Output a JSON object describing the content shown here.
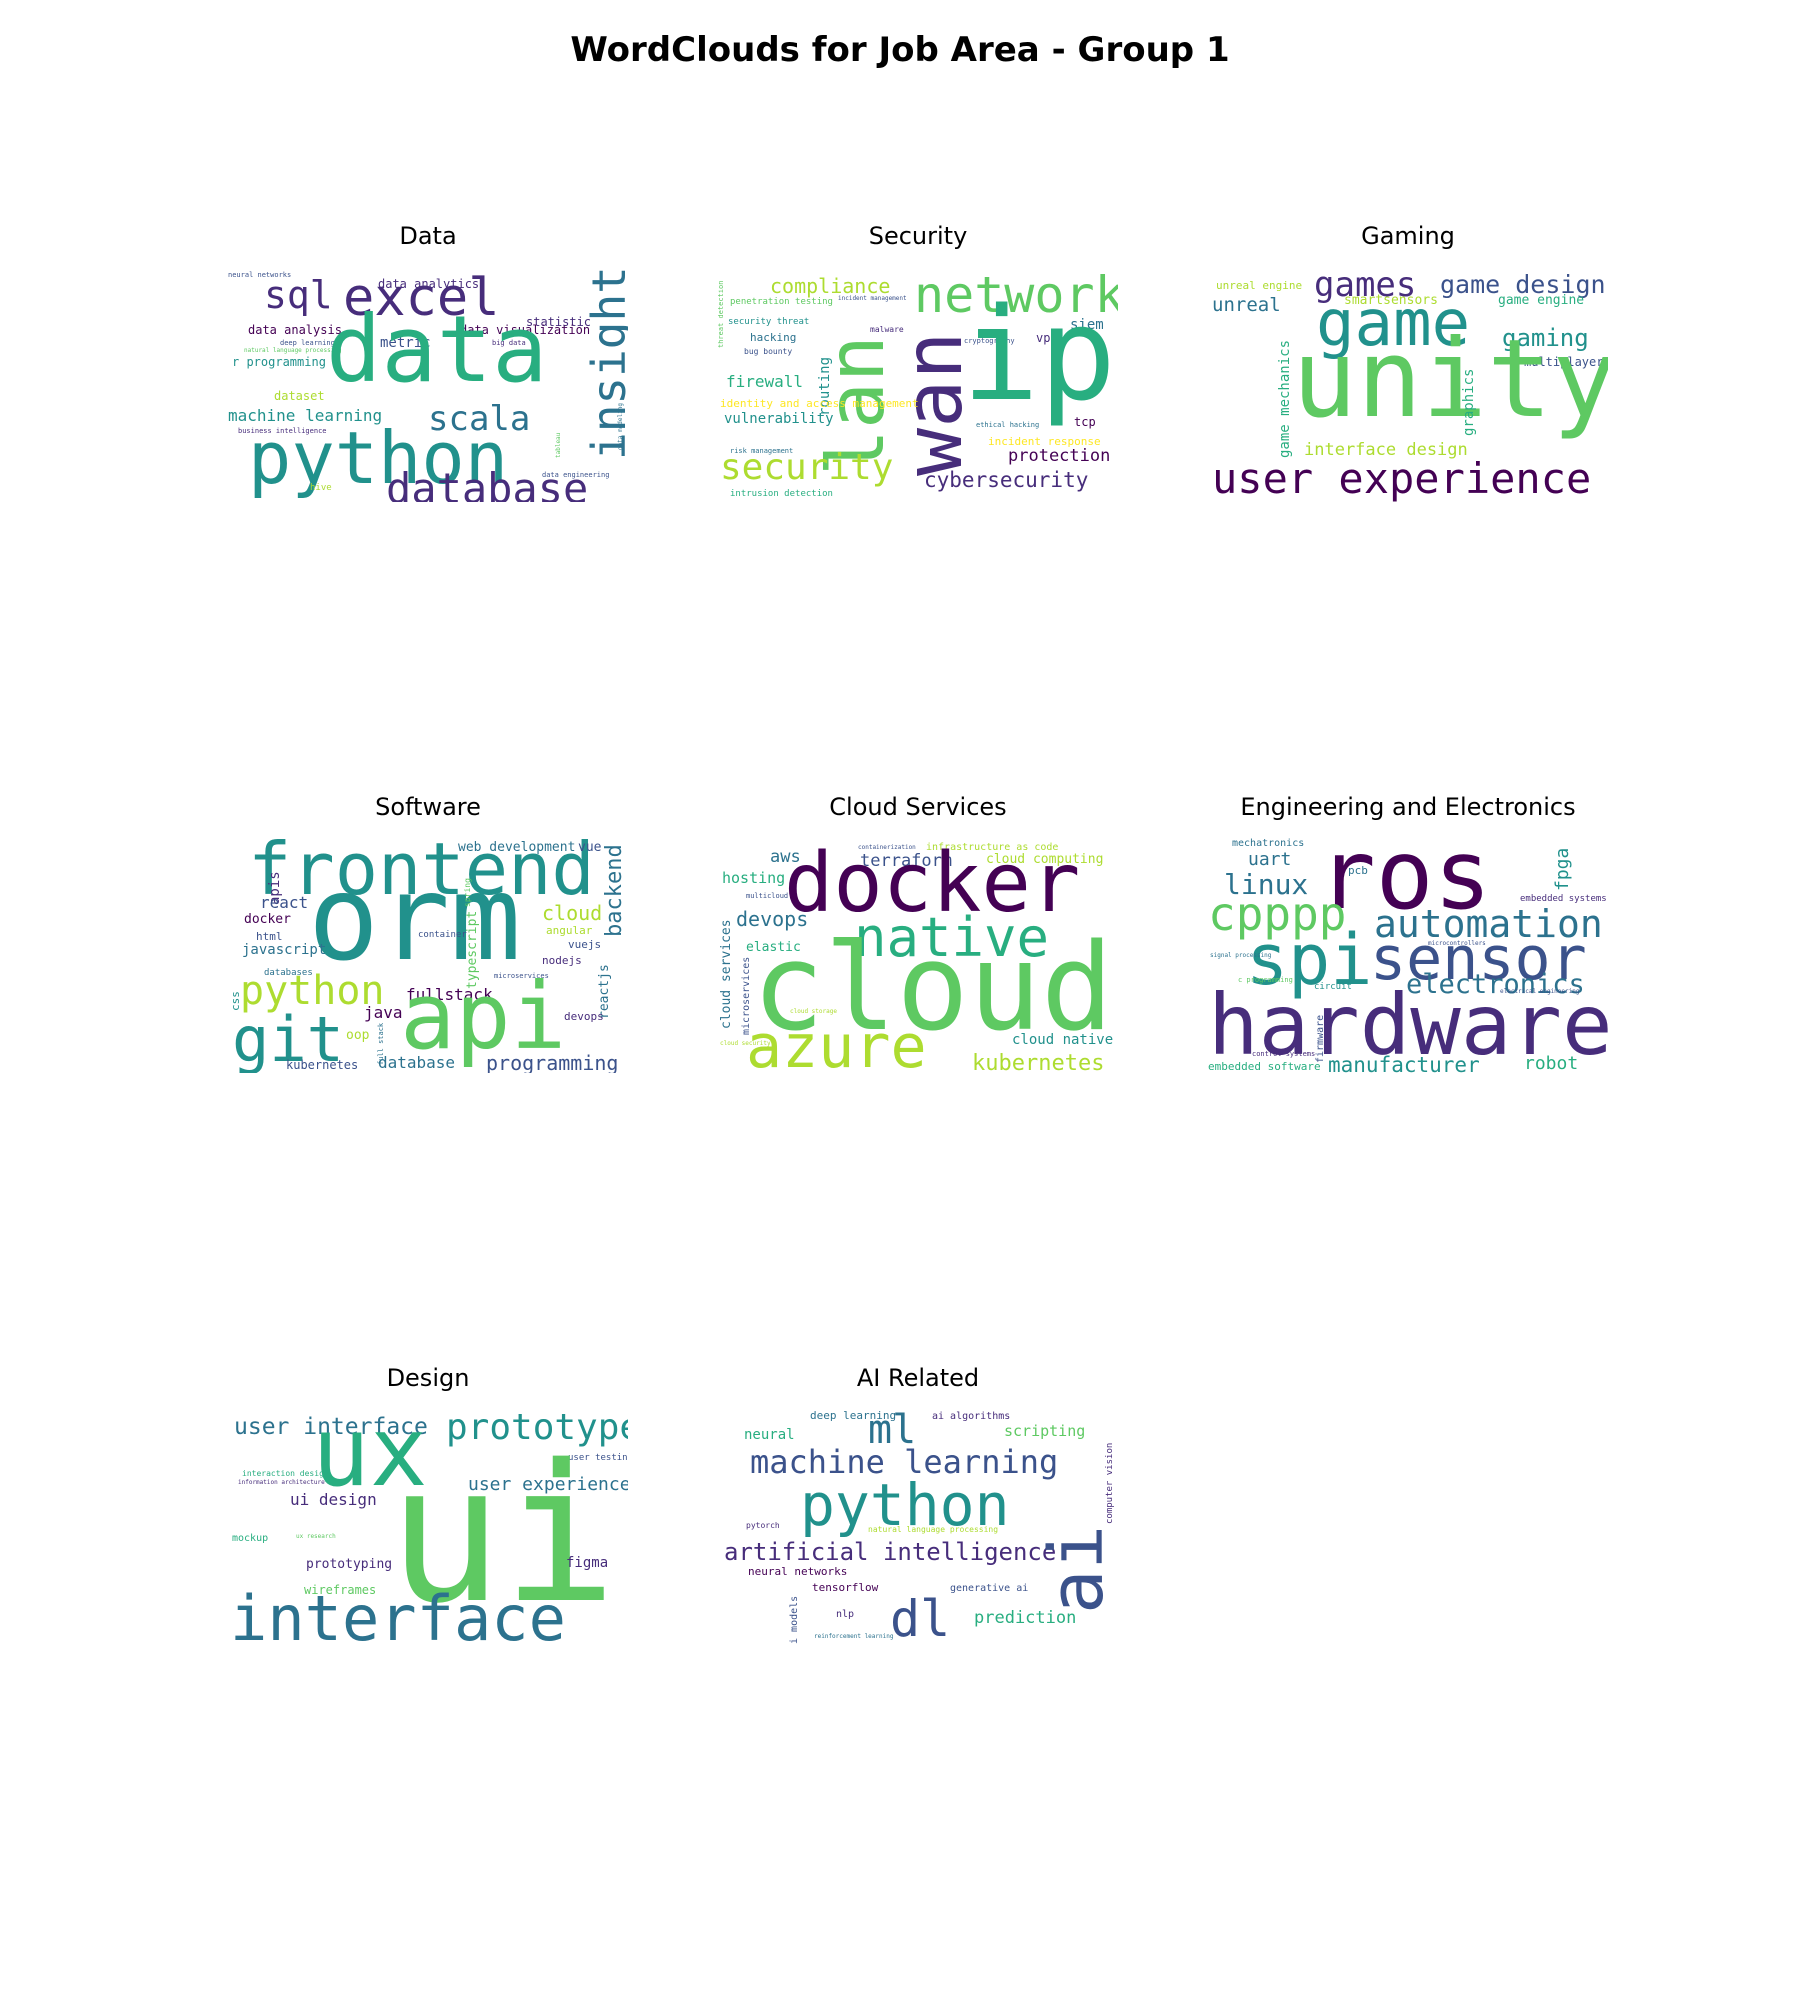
{
  "title": "WordClouds for Job Area - Group 1",
  "palette": {
    "dark_purple": "#440154",
    "indigo": "#472d7b",
    "slate_blue": "#3b528b",
    "steel_blue": "#2c728e",
    "teal": "#21918c",
    "green_teal": "#28ae80",
    "green": "#5ec962",
    "yellow_green": "#addc30",
    "yellow": "#fde725"
  },
  "panels": [
    {
      "title": "Data",
      "words": [
        {
          "text": "neural networks",
          "color": "#3b528b"
        },
        {
          "text": "data analytics",
          "color": "#472d7b"
        },
        {
          "text": "sql",
          "color": "#472d7b"
        },
        {
          "text": "excel",
          "color": "#472d7b"
        },
        {
          "text": "insight",
          "color": "#2c728e"
        },
        {
          "text": "statistic",
          "color": "#472d7b"
        },
        {
          "text": "data analysis",
          "color": "#440154"
        },
        {
          "text": "data visualization",
          "color": "#440154"
        },
        {
          "text": "metric",
          "color": "#3b528b"
        },
        {
          "text": "big data",
          "color": "#472d7b"
        },
        {
          "text": "deep learning",
          "color": "#3b528b"
        },
        {
          "text": "natural language processing",
          "color": "#5ec962"
        },
        {
          "text": "r programming",
          "color": "#21918c"
        },
        {
          "text": "data",
          "color": "#28ae80"
        },
        {
          "text": "dataset",
          "color": "#addc30"
        },
        {
          "text": "machine learning",
          "color": "#21918c"
        },
        {
          "text": "scala",
          "color": "#2c728e"
        },
        {
          "text": "business intelligence",
          "color": "#472d7b"
        },
        {
          "text": "python",
          "color": "#21918c"
        },
        {
          "text": "hive",
          "color": "#addc30"
        },
        {
          "text": "database",
          "color": "#472d7b"
        },
        {
          "text": "data engineering",
          "color": "#3b528b"
        },
        {
          "text": "tableau",
          "color": "#5ec962"
        },
        {
          "text": "data modeling",
          "color": "#2c728e"
        }
      ]
    },
    {
      "title": "Security",
      "words": [
        {
          "text": "compliance",
          "color": "#addc30"
        },
        {
          "text": "network",
          "color": "#5ec962"
        },
        {
          "text": "penetration testing",
          "color": "#5ec962"
        },
        {
          "text": "incident management",
          "color": "#3b528b"
        },
        {
          "text": "threat detection",
          "color": "#5ec962"
        },
        {
          "text": "security threat",
          "color": "#21918c"
        },
        {
          "text": "hacking",
          "color": "#2c728e"
        },
        {
          "text": "bug bounty",
          "color": "#3b528b"
        },
        {
          "text": "malware",
          "color": "#472d7b"
        },
        {
          "text": "cryptography",
          "color": "#3b528b"
        },
        {
          "text": "vpn",
          "color": "#472d7b"
        },
        {
          "text": "siem",
          "color": "#2c728e"
        },
        {
          "text": "encryption",
          "color": "#440154"
        },
        {
          "text": "ip",
          "color": "#28ae80"
        },
        {
          "text": "lan",
          "color": "#5ec962"
        },
        {
          "text": "wan",
          "color": "#472d7b"
        },
        {
          "text": "firewall",
          "color": "#28ae80"
        },
        {
          "text": "routing",
          "color": "#21918c"
        },
        {
          "text": "identity and access management",
          "color": "#fde725"
        },
        {
          "text": "vulnerability",
          "color": "#21918c"
        },
        {
          "text": "ethical hacking",
          "color": "#2c728e"
        },
        {
          "text": "tcp",
          "color": "#440154"
        },
        {
          "text": "incident response",
          "color": "#fde725"
        },
        {
          "text": "risk management",
          "color": "#2c728e"
        },
        {
          "text": "protection",
          "color": "#440154"
        },
        {
          "text": "security",
          "color": "#addc30"
        },
        {
          "text": "cybersecurity",
          "color": "#472d7b"
        },
        {
          "text": "intrusion detection",
          "color": "#28ae80"
        }
      ]
    },
    {
      "title": "Gaming",
      "words": [
        {
          "text": "unreal engine",
          "color": "#addc30"
        },
        {
          "text": "games",
          "color": "#472d7b"
        },
        {
          "text": "game design",
          "color": "#3b528b"
        },
        {
          "text": "unreal",
          "color": "#2c728e"
        },
        {
          "text": "smartsensors",
          "color": "#addc30"
        },
        {
          "text": "game engine",
          "color": "#28ae80"
        },
        {
          "text": "game",
          "color": "#21918c"
        },
        {
          "text": "gaming",
          "color": "#21918c"
        },
        {
          "text": "multiplayer",
          "color": "#3b528b"
        },
        {
          "text": "game mechanics",
          "color": "#28ae80"
        },
        {
          "text": "unity",
          "color": "#5ec962"
        },
        {
          "text": "graphics",
          "color": "#28ae80"
        },
        {
          "text": "interface design",
          "color": "#addc30"
        },
        {
          "text": "user experience",
          "color": "#440154"
        }
      ]
    },
    {
      "title": "Software",
      "words": [
        {
          "text": "frontend",
          "color": "#21918c"
        },
        {
          "text": "web development",
          "color": "#2c728e"
        },
        {
          "text": "vue",
          "color": "#3b528b"
        },
        {
          "text": "backend",
          "color": "#2c728e"
        },
        {
          "text": "apis",
          "color": "#472d7b"
        },
        {
          "text": "react",
          "color": "#3b528b"
        },
        {
          "text": "docker",
          "color": "#440154"
        },
        {
          "text": "orm",
          "color": "#21918c"
        },
        {
          "text": "spring",
          "color": "#5ec962"
        },
        {
          "text": "cloud",
          "color": "#addc30"
        },
        {
          "text": "html",
          "color": "#3b528b"
        },
        {
          "text": "container",
          "color": "#3b528b"
        },
        {
          "text": "angular",
          "color": "#addc30"
        },
        {
          "text": "javascript",
          "color": "#2c728e"
        },
        {
          "text": "typescript",
          "color": "#5ec962"
        },
        {
          "text": "vuejs",
          "color": "#3b528b"
        },
        {
          "text": "nodejs",
          "color": "#472d7b"
        },
        {
          "text": "databases",
          "color": "#2c728e"
        },
        {
          "text": "microservices",
          "color": "#3b528b"
        },
        {
          "text": "python",
          "color": "#addc30"
        },
        {
          "text": "reactjs",
          "color": "#2c728e"
        },
        {
          "text": "css",
          "color": "#21918c"
        },
        {
          "text": "fullstack",
          "color": "#440154"
        },
        {
          "text": "java",
          "color": "#440154"
        },
        {
          "text": "api",
          "color": "#5ec962"
        },
        {
          "text": "devops",
          "color": "#472d7b"
        },
        {
          "text": "git",
          "color": "#21918c"
        },
        {
          "text": "oop",
          "color": "#addc30"
        },
        {
          "text": "full stack",
          "color": "#2c728e"
        },
        {
          "text": "kubernetes",
          "color": "#3b528b"
        },
        {
          "text": "database",
          "color": "#2c728e"
        },
        {
          "text": "programming",
          "color": "#3b528b"
        }
      ]
    },
    {
      "title": "Cloud Services",
      "words": [
        {
          "text": "containerization",
          "color": "#3b528b"
        },
        {
          "text": "infrastructure as code",
          "color": "#addc30"
        },
        {
          "text": "aws",
          "color": "#2c728e"
        },
        {
          "text": "terraform",
          "color": "#3b528b"
        },
        {
          "text": "cloud computing",
          "color": "#addc30"
        },
        {
          "text": "hosting",
          "color": "#28ae80"
        },
        {
          "text": "docker",
          "color": "#440154"
        },
        {
          "text": "multicloud",
          "color": "#3b528b"
        },
        {
          "text": "devops",
          "color": "#2c728e"
        },
        {
          "text": "native",
          "color": "#28ae80"
        },
        {
          "text": "cloud services",
          "color": "#2c728e"
        },
        {
          "text": "elastic",
          "color": "#28ae80"
        },
        {
          "text": "microservices",
          "color": "#3b528b"
        },
        {
          "text": "cloud",
          "color": "#5ec962"
        },
        {
          "text": "cloud storage",
          "color": "#addc30"
        },
        {
          "text": "cloud native",
          "color": "#21918c"
        },
        {
          "text": "cloud security",
          "color": "#addc30"
        },
        {
          "text": "azure",
          "color": "#addc30"
        },
        {
          "text": "kubernetes",
          "color": "#addc30"
        }
      ]
    },
    {
      "title": "Engineering and Electronics",
      "words": [
        {
          "text": "mechatronics",
          "color": "#2c728e"
        },
        {
          "text": "uart",
          "color": "#2c728e"
        },
        {
          "text": "ros",
          "color": "#440154"
        },
        {
          "text": "pcb",
          "color": "#2c728e"
        },
        {
          "text": "fpga",
          "color": "#21918c"
        },
        {
          "text": "linux",
          "color": "#2c728e"
        },
        {
          "text": "embedded systems",
          "color": "#472d7b"
        },
        {
          "text": "cpppp",
          "color": "#5ec962"
        },
        {
          "text": "automation",
          "color": "#2c728e"
        },
        {
          "text": "microcontrollers",
          "color": "#3b528b"
        },
        {
          "text": "spi",
          "color": "#21918c"
        },
        {
          "text": "sensor",
          "color": "#3b528b"
        },
        {
          "text": "signal processing",
          "color": "#2c728e"
        },
        {
          "text": "c programming",
          "color": "#5ec962"
        },
        {
          "text": "electronics",
          "color": "#2c728e"
        },
        {
          "text": "circuit",
          "color": "#21918c"
        },
        {
          "text": "electrical engineering",
          "color": "#3b528b"
        },
        {
          "text": "hardware",
          "color": "#472d7b"
        },
        {
          "text": "firmware",
          "color": "#3b528b"
        },
        {
          "text": "control systems",
          "color": "#472d7b"
        },
        {
          "text": "embedded software",
          "color": "#28ae80"
        },
        {
          "text": "manufacturer",
          "color": "#21918c"
        },
        {
          "text": "robot",
          "color": "#28ae80"
        }
      ]
    },
    {
      "title": "Design",
      "words": [
        {
          "text": "user interface",
          "color": "#2c728e"
        },
        {
          "text": "ux",
          "color": "#28ae80"
        },
        {
          "text": "prototype",
          "color": "#21918c"
        },
        {
          "text": "user testing",
          "color": "#3b528b"
        },
        {
          "text": "interaction design",
          "color": "#28ae80"
        },
        {
          "text": "information architecture",
          "color": "#472d7b"
        },
        {
          "text": "user experience",
          "color": "#2c728e"
        },
        {
          "text": "ui design",
          "color": "#472d7b"
        },
        {
          "text": "mockup",
          "color": "#28ae80"
        },
        {
          "text": "ux research",
          "color": "#5ec962"
        },
        {
          "text": "ui",
          "color": "#5ec962"
        },
        {
          "text": "prototyping",
          "color": "#472d7b"
        },
        {
          "text": "figma",
          "color": "#472d7b"
        },
        {
          "text": "wireframes",
          "color": "#5ec962"
        },
        {
          "text": "interface",
          "color": "#2c728e"
        }
      ]
    },
    {
      "title": "AI Related",
      "words": [
        {
          "text": "deep learning",
          "color": "#2c728e"
        },
        {
          "text": "ai algorithms",
          "color": "#472d7b"
        },
        {
          "text": "neural",
          "color": "#28ae80"
        },
        {
          "text": "ml",
          "color": "#2c728e"
        },
        {
          "text": "scripting",
          "color": "#5ec962"
        },
        {
          "text": "computer vision",
          "color": "#472d7b"
        },
        {
          "text": "machine learning",
          "color": "#3b528b"
        },
        {
          "text": "python",
          "color": "#21918c"
        },
        {
          "text": "pytorch",
          "color": "#472d7b"
        },
        {
          "text": "natural language processing",
          "color": "#addc30"
        },
        {
          "text": "artificial intelligence",
          "color": "#472d7b"
        },
        {
          "text": "ai",
          "color": "#3b528b"
        },
        {
          "text": "neural networks",
          "color": "#440154"
        },
        {
          "text": "tensorflow",
          "color": "#440154"
        },
        {
          "text": "generative ai",
          "color": "#3b528b"
        },
        {
          "text": "ai models",
          "color": "#3b528b"
        },
        {
          "text": "nlp",
          "color": "#472d7b"
        },
        {
          "text": "dl",
          "color": "#3b528b"
        },
        {
          "text": "prediction",
          "color": "#28ae80"
        },
        {
          "text": "reinforcement learning",
          "color": "#2c728e"
        }
      ]
    }
  ]
}
